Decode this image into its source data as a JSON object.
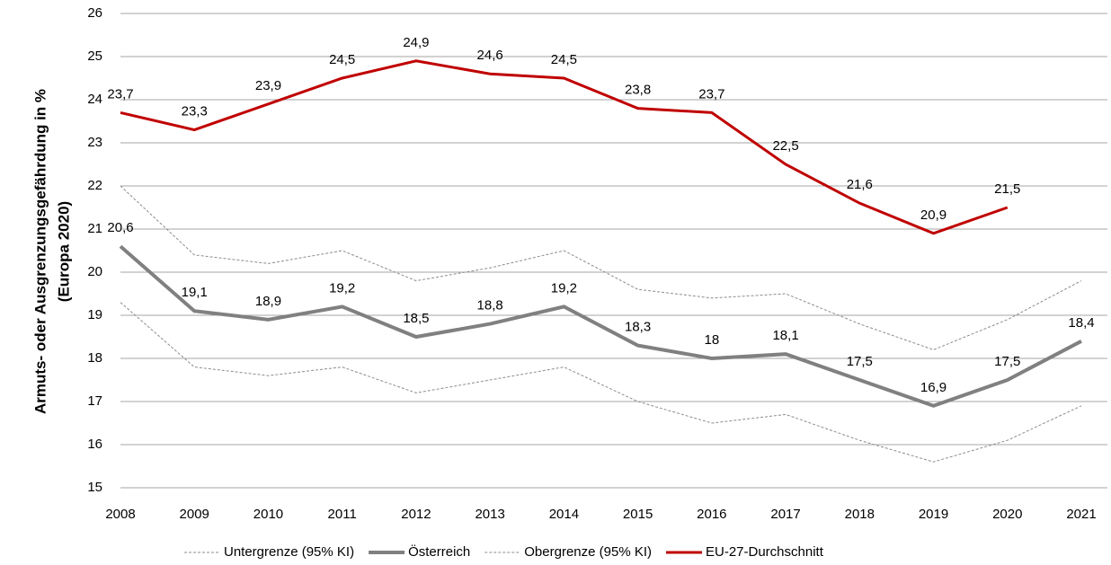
{
  "chart_data": {
    "type": "line",
    "ylabel": [
      "Armuts- oder Ausgrenzungsgefährdung in %",
      "(Europa 2020)"
    ],
    "x": [
      2008,
      2009,
      2010,
      2011,
      2012,
      2013,
      2014,
      2015,
      2016,
      2017,
      2018,
      2019,
      2020,
      2021
    ],
    "xlim": [
      2008,
      2021
    ],
    "xticks": [
      2008,
      2009,
      2010,
      2011,
      2012,
      2013,
      2014,
      2015,
      2016,
      2017,
      2018,
      2019,
      2020,
      2021
    ],
    "ylim": [
      15,
      26
    ],
    "yticks": [
      15,
      16,
      17,
      18,
      19,
      20,
      21,
      22,
      23,
      24,
      25,
      26
    ],
    "grid": true,
    "legend": "bottom",
    "series": [
      {
        "name": "Untergrenze (95% KI)",
        "color": "#8c8c8c",
        "dashed": true,
        "linewidth": 1,
        "values": [
          19.3,
          17.8,
          17.6,
          17.8,
          17.2,
          17.5,
          17.8,
          17.0,
          16.5,
          16.7,
          16.1,
          15.6,
          16.1,
          16.9
        ]
      },
      {
        "name": "Österreich",
        "color": "#808080",
        "dashed": false,
        "linewidth": 4,
        "values": [
          20.6,
          19.1,
          18.9,
          19.2,
          18.5,
          18.8,
          19.2,
          18.3,
          18,
          18.1,
          17.5,
          16.9,
          17.5,
          18.4
        ],
        "value_labels": [
          "20,6",
          "19,1",
          "18,9",
          "19,2",
          "18,5",
          "18,8",
          "19,2",
          "18,3",
          "18",
          "18,1",
          "17,5",
          "16,9",
          "17,5",
          "18,4"
        ]
      },
      {
        "name": "Obergrenze (95% KI)",
        "color": "#8c8c8c",
        "dashed": true,
        "linewidth": 1,
        "values": [
          22.0,
          20.4,
          20.2,
          20.5,
          19.8,
          20.1,
          20.5,
          19.6,
          19.4,
          19.5,
          18.8,
          18.2,
          18.9,
          19.8
        ]
      },
      {
        "name": "EU-27-Durchschnitt",
        "color": "#c00000",
        "dashed": false,
        "linewidth": 3,
        "values": [
          23.7,
          23.3,
          23.9,
          24.5,
          24.9,
          24.6,
          24.5,
          23.8,
          23.7,
          22.5,
          21.6,
          20.9,
          21.5,
          null
        ],
        "value_labels": [
          "23,7",
          "23,3",
          "23,9",
          "24,5",
          "24,9",
          "24,6",
          "24,5",
          "23,8",
          "23,7",
          "22,5",
          "21,6",
          "20,9",
          "21,5",
          null
        ]
      }
    ]
  }
}
